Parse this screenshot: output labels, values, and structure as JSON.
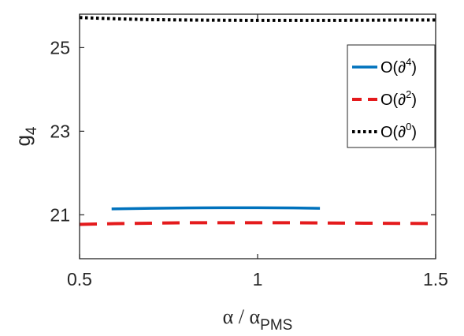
{
  "chart_data": {
    "type": "line",
    "xlabel": {
      "main": "α / α",
      "sub": "PMS"
    },
    "ylabel": {
      "main": "g",
      "sub": "4"
    },
    "xlim": [
      0.5,
      1.5
    ],
    "ylim": [
      19.95,
      25.8
    ],
    "xticks": [
      0.5,
      1,
      1.5
    ],
    "xtick_labels": [
      "0.5",
      "1",
      "1.5"
    ],
    "yticks": [
      21,
      23,
      25
    ],
    "ytick_labels": [
      "21",
      "23",
      "25"
    ],
    "grid": false,
    "legend_position": "top-right",
    "series": [
      {
        "name": "O(∂4)",
        "name_base": "O(∂",
        "name_sup": "4",
        "name_close": ")",
        "color": "#0072BD",
        "style": "solid",
        "x": [
          0.59,
          0.7,
          0.8,
          0.9,
          1.0,
          1.1,
          1.175
        ],
        "y": [
          21.14,
          21.155,
          21.165,
          21.17,
          21.17,
          21.165,
          21.155
        ]
      },
      {
        "name": "O(∂2)",
        "name_base": "O(∂",
        "name_sup": "2",
        "name_close": ")",
        "color": "#E41A1C",
        "style": "dashed",
        "x": [
          0.5,
          0.6,
          0.7,
          0.8,
          0.9,
          1.0,
          1.1,
          1.2,
          1.3,
          1.4,
          1.5
        ],
        "y": [
          20.77,
          20.79,
          20.8,
          20.81,
          20.81,
          20.81,
          20.81,
          20.805,
          20.8,
          20.795,
          20.79
        ]
      },
      {
        "name": "O(∂0)",
        "name_base": "O(∂",
        "name_sup": "0",
        "name_close": ")",
        "color": "#000000",
        "style": "dotted",
        "x": [
          0.5,
          0.6,
          0.7,
          0.8,
          0.9,
          1.0,
          1.1,
          1.2,
          1.3,
          1.4,
          1.5
        ],
        "y": [
          25.72,
          25.69,
          25.67,
          25.66,
          25.655,
          25.65,
          25.65,
          25.65,
          25.655,
          25.66,
          25.66
        ]
      }
    ]
  }
}
